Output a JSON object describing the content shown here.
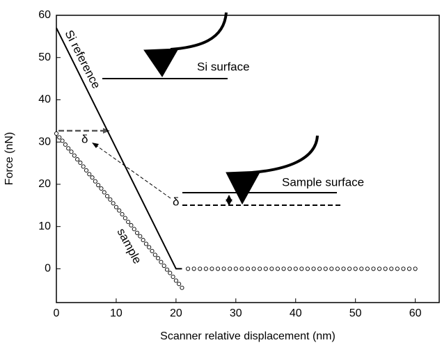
{
  "chart_data": {
    "type": "line",
    "x_label": "Scanner relative displacement (nm)",
    "y_label": "Force (nN)",
    "xlim": [
      0,
      64
    ],
    "ylim": [
      -8,
      60
    ],
    "xticks": [
      0,
      10,
      20,
      30,
      40,
      50,
      60
    ],
    "yticks": [
      0,
      10,
      20,
      30,
      40,
      50,
      60
    ],
    "annotations": [
      "Si reference",
      "sample",
      "Si surface",
      "Sample surface",
      "δ",
      "δ"
    ],
    "series": [
      {
        "name": "Si reference",
        "color": "#000000",
        "mode": "line",
        "x": [
          0,
          20,
          21
        ],
        "values": [
          57,
          0,
          0
        ]
      },
      {
        "name": "sample",
        "color": "#000000",
        "mode": "markers",
        "x": [
          0,
          0.5,
          1,
          1.5,
          2,
          2.5,
          3,
          3.5,
          4,
          4.5,
          5,
          5.5,
          6,
          6.5,
          7,
          7.5,
          8,
          8.5,
          9,
          9.5,
          10,
          10.5,
          11,
          11.5,
          12,
          12.5,
          13,
          13.5,
          14,
          14.5,
          15,
          15.5,
          16,
          16.5,
          17,
          17.5,
          18,
          18.5,
          19,
          19.5,
          20,
          20.5,
          21,
          22,
          23,
          24,
          25,
          26,
          27,
          28,
          29,
          30,
          31,
          32,
          33,
          34,
          35,
          36,
          37,
          38,
          39,
          40,
          41,
          42,
          43,
          44,
          45,
          46,
          47,
          48,
          49,
          50,
          51,
          52,
          53,
          54,
          55,
          56,
          57,
          58,
          59,
          60
        ],
        "values": [
          32,
          31.1,
          30.3,
          29.4,
          28.5,
          27.7,
          26.8,
          25.9,
          25.1,
          24.2,
          23.3,
          22.4,
          21.6,
          20.7,
          19.8,
          19,
          18.1,
          17.2,
          16.4,
          15.5,
          14.6,
          13.8,
          12.9,
          12,
          11.1,
          10.3,
          9.4,
          8.5,
          7.7,
          6.8,
          5.9,
          5.1,
          4.2,
          3.3,
          2.5,
          1.6,
          0.7,
          -0.2,
          -1,
          -1.9,
          -2.8,
          -3.6,
          -4.5,
          0,
          0,
          0,
          0,
          0,
          0,
          0,
          0,
          0,
          0,
          0,
          0,
          0,
          0,
          0,
          0,
          0,
          0,
          0,
          0,
          0,
          0,
          0,
          0,
          0,
          0,
          0,
          0,
          0,
          0,
          0,
          0,
          0,
          0,
          0,
          0,
          0,
          0,
          0
        ]
      }
    ]
  }
}
